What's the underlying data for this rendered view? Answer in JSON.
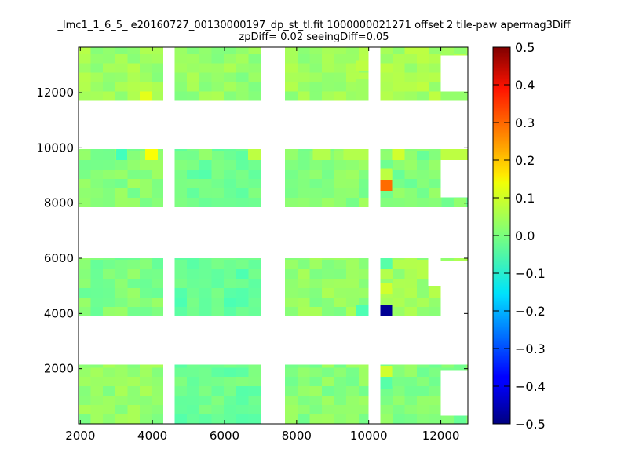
{
  "chart_data": {
    "type": "heatmap",
    "title_line1": "_lmc1_1_6_5_ e20160727_00130000197_dp_st_tl.fit 1000000021271 offset 2 tile-paw apermag3Diff",
    "title_line2": "zpDiff= 0.02 seeingDiff=0.05",
    "xlabel": "",
    "ylabel": "",
    "xlim": [
      1950,
      12750
    ],
    "ylim": [
      0,
      13650
    ],
    "xticks": [
      2000,
      4000,
      6000,
      8000,
      10000,
      12000
    ],
    "xtick_labels": [
      "2000",
      "4000",
      "6000",
      "8000",
      "10000",
      "12000"
    ],
    "yticks": [
      2000,
      4000,
      6000,
      8000,
      10000,
      12000
    ],
    "ytick_labels": [
      "2000",
      "4000",
      "6000",
      "8000",
      "10000",
      "12000"
    ],
    "colorbar": {
      "colormap": "jet",
      "range": [
        -0.5,
        0.5
      ],
      "ticks": [
        0.5,
        0.4,
        0.3,
        0.2,
        0.1,
        0.0,
        -0.1,
        -0.2,
        -0.3,
        -0.4,
        -0.5
      ],
      "tick_labels": [
        "0.5",
        "0.4",
        "0.3",
        "0.2",
        "0.1",
        "0.0",
        "−0.1",
        "−0.2",
        "−0.3",
        "−0.4",
        "−0.5"
      ]
    },
    "columns": [
      {
        "x": [
          1950,
          4300
        ]
      },
      {
        "x": [
          4620,
          7000
        ]
      },
      {
        "x": [
          7680,
          10000
        ]
      },
      {
        "x": [
          10320,
          12750
        ]
      }
    ],
    "rows": [
      {
        "y": [
          0,
          2150
        ]
      },
      {
        "y": [
          3900,
          6000
        ]
      },
      {
        "y": [
          7850,
          9950
        ]
      },
      {
        "y": [
          11700,
          13650
        ]
      }
    ],
    "base_values": [
      [
        0.02,
        -0.02,
        0.01,
        0.0
      ],
      [
        0.0,
        -0.03,
        0.02,
        0.03
      ],
      [
        0.01,
        -0.02,
        0.01,
        0.0
      ],
      [
        0.03,
        0.02,
        0.03,
        0.04
      ]
    ],
    "cell_size": [
      340,
      340
    ],
    "highlight_cells": [
      {
        "x": [
          3650,
          3980
        ],
        "y": [
          11700,
          12050
        ],
        "value": 0.1
      },
      {
        "x": [
          12000,
          12750
        ],
        "y": [
          11700,
          12050
        ],
        "value": 0.02
      },
      {
        "x": [
          3800,
          4150
        ],
        "y": [
          9550,
          9950
        ],
        "value": 0.12
      },
      {
        "x": [
          3000,
          3300
        ],
        "y": [
          9550,
          9950
        ],
        "value": -0.06
      },
      {
        "x": [
          5300,
          5650
        ],
        "y": [
          9550,
          9950
        ],
        "value": 0.02
      },
      {
        "x": [
          6650,
          7000
        ],
        "y": [
          9550,
          9950
        ],
        "value": 0.06
      },
      {
        "x": [
          9300,
          10000
        ],
        "y": [
          9550,
          9950
        ],
        "value": 0.05
      },
      {
        "x": [
          10650,
          11000
        ],
        "y": [
          9550,
          9950
        ],
        "value": 0.08
      },
      {
        "x": [
          12000,
          12750
        ],
        "y": [
          9550,
          9950
        ],
        "value": 0.06
      },
      {
        "x": [
          10320,
          10650
        ],
        "y": [
          8850,
          9250
        ],
        "value": 0.06
      },
      {
        "x": [
          10320,
          10650
        ],
        "y": [
          8450,
          8850
        ],
        "value": 0.27
      },
      {
        "x": [
          10320,
          10650
        ],
        "y": [
          3900,
          4300
        ],
        "value": -0.48
      },
      {
        "x": [
          10320,
          10650
        ],
        "y": [
          5600,
          6000
        ],
        "value": -0.04
      },
      {
        "x": [
          10320,
          10650
        ],
        "y": [
          4700,
          5100
        ],
        "value": 0.08
      },
      {
        "x": [
          10320,
          10650
        ],
        "y": [
          1700,
          2100
        ],
        "value": 0.08
      },
      {
        "x": [
          10320,
          10650
        ],
        "y": [
          1250,
          1700
        ],
        "value": -0.04
      },
      {
        "x": [
          9650,
          10000
        ],
        "y": [
          3900,
          4300
        ],
        "value": -0.05
      },
      {
        "x": [
          9650,
          10000
        ],
        "y": [
          12800,
          13150
        ],
        "value": 0.06
      },
      {
        "x": [
          9650,
          10000
        ],
        "y": [
          11700,
          12500
        ],
        "value": 0.03
      },
      {
        "x": [
          7680,
          8000
        ],
        "y": [
          9550,
          9950
        ],
        "value": 0.02
      },
      {
        "x": [
          8450,
          8950
        ],
        "y": [
          9550,
          9950
        ],
        "value": 0.05
      }
    ],
    "white_cutouts": [
      {
        "x": [
          11650,
          12750
        ],
        "y": [
          2150,
          6000
        ],
        "overrides": [
          [
            11650,
            12000,
            2150,
            3900
          ],
          [
            12000,
            12750,
            3900,
            4300
          ],
          [
            12000,
            12750,
            4300,
            5000
          ],
          [
            11650,
            12750,
            5000,
            5600
          ],
          [
            11650,
            12000,
            5600,
            6000
          ]
        ]
      },
      {
        "x": [
          12000,
          12750
        ],
        "y": [
          7850,
          9950
        ],
        "overrides": [
          [
            12000,
            12750,
            8200,
            9550
          ]
        ]
      },
      {
        "x": [
          12000,
          12750
        ],
        "y": [
          11700,
          13650
        ],
        "overrides": [
          [
            12000,
            12750,
            12050,
            13350
          ]
        ]
      },
      {
        "x": [
          11650,
          12750
        ],
        "y": [
          0,
          2150
        ],
        "overrides": [
          [
            12000,
            12750,
            300,
            1300
          ]
        ]
      },
      {
        "x": [
          11650,
          12750
        ],
        "y": [
          3900,
          6000
        ],
        "overrides": [
          [
            12000,
            12750,
            4300,
            5900
          ]
        ]
      }
    ],
    "missing_rects": [
      {
        "x": [
          12000,
          12750
        ],
        "y": [
          0,
          2150
        ]
      },
      {
        "x": [
          12000,
          12750
        ],
        "y": [
          3900,
          6000
        ]
      }
    ]
  }
}
